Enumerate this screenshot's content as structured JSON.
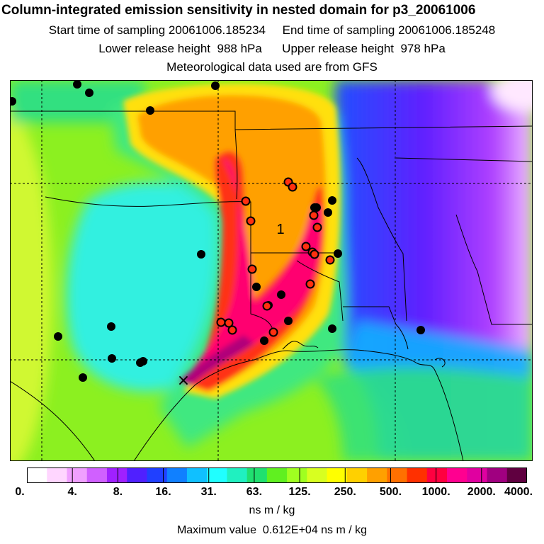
{
  "header": {
    "title": "Column-integrated emission sensitivity in nested domain for p3_20061006",
    "start_label": "Start time of sampling",
    "start_value": "20061006.185234",
    "end_label": "End time of sampling",
    "end_value": "20061006.185248",
    "lower_label": "Lower release height",
    "lower_value": "988 hPa",
    "upper_label": "Upper release height",
    "upper_value": "978 hPa",
    "met_line": "Meteorological data used are from GFS"
  },
  "map": {
    "plume_label": "1",
    "release_marker": "×"
  },
  "colorbar": {
    "ticks": [
      "0.",
      "4.",
      "8.",
      "16.",
      "31.",
      "63.",
      "125.",
      "250.",
      "500.",
      "1000.",
      "2000.",
      "4000."
    ],
    "units": "ns m / kg",
    "max_label": "Maximum value",
    "max_value": "0.612E+04 ns m / kg",
    "colors": [
      "#ffffff",
      "#ffd6ff",
      "#f0a0ff",
      "#d060ff",
      "#a020ff",
      "#5020ff",
      "#2040ff",
      "#1080ff",
      "#10c0ff",
      "#20ffff",
      "#20f0c0",
      "#20e070",
      "#60f020",
      "#a0ff20",
      "#d8ff20",
      "#ffff00",
      "#ffd000",
      "#ffa000",
      "#ff7000",
      "#ff3000",
      "#ff0040",
      "#ff0090",
      "#e000a0",
      "#a00080",
      "#600040"
    ]
  }
}
